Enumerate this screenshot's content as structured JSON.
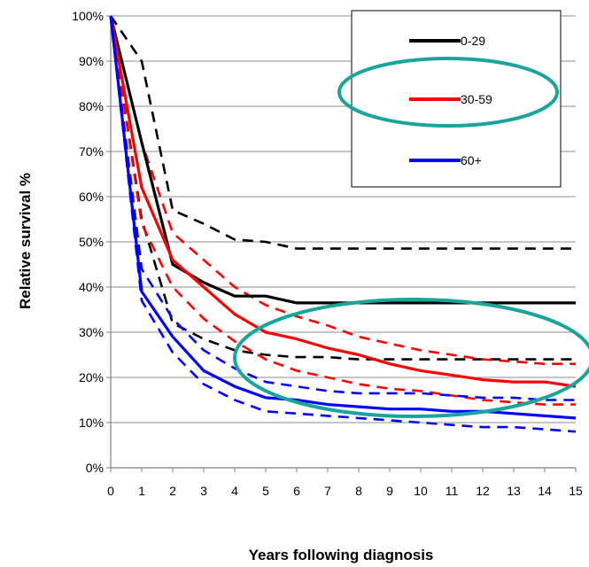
{
  "chart_data": {
    "type": "line",
    "xlabel": "Years following diagnosis",
    "ylabel": "Relative survival %",
    "xlim": [
      0,
      15
    ],
    "ylim": [
      0,
      100
    ],
    "x_ticks": [
      "0",
      "1",
      "2",
      "3",
      "4",
      "5",
      "6",
      "7",
      "8",
      "9",
      "10",
      "11",
      "12",
      "13",
      "14",
      "15"
    ],
    "y_ticks": [
      "0%",
      "10%",
      "20%",
      "30%",
      "40%",
      "50%",
      "60%",
      "70%",
      "80%",
      "90%",
      "100%"
    ],
    "grid": "horizontal",
    "legend_position": "top-right",
    "x": [
      0,
      1,
      2,
      3,
      4,
      5,
      6,
      7,
      8,
      9,
      10,
      11,
      12,
      13,
      14,
      15
    ],
    "series": [
      {
        "name": "0-29",
        "color": "#000000",
        "style": "solid",
        "values": [
          100,
          72,
          45,
          41,
          38,
          38,
          36.5,
          36.5,
          36.5,
          36.5,
          36.5,
          36.5,
          36.5,
          36.5,
          36.5,
          36.5
        ]
      },
      {
        "name": "",
        "color": "#000000",
        "style": "dashed",
        "legend": false,
        "values": [
          100,
          90,
          57,
          54,
          50.5,
          50,
          48.5,
          48.5,
          48.5,
          48.5,
          48.5,
          48.5,
          48.5,
          48.5,
          48.5,
          48.5
        ]
      },
      {
        "name": "",
        "color": "#000000",
        "style": "dashed",
        "legend": false,
        "values": [
          100,
          55,
          32,
          28.5,
          26,
          25,
          24.5,
          24.5,
          24,
          24,
          24,
          24,
          24,
          24,
          24,
          24
        ]
      },
      {
        "name": "30-59",
        "color": "#ff0000",
        "style": "solid",
        "values": [
          100,
          62,
          46,
          40,
          34,
          30,
          28.5,
          26.5,
          25,
          23,
          21.5,
          20.5,
          19.5,
          19,
          19,
          18
        ]
      },
      {
        "name": "",
        "color": "#ff0000",
        "style": "dashed",
        "legend": false,
        "values": [
          100,
          72,
          52,
          46,
          40,
          36,
          33.5,
          31.5,
          29,
          27.5,
          26,
          25,
          24,
          23.5,
          23,
          23
        ]
      },
      {
        "name": "",
        "color": "#ff0000",
        "style": "dashed",
        "legend": false,
        "values": [
          100,
          54,
          40,
          33,
          28,
          24,
          21.5,
          20,
          18.5,
          17.5,
          17,
          16,
          15,
          14.5,
          14,
          14
        ]
      },
      {
        "name": "60+",
        "color": "#0000ff",
        "style": "solid",
        "values": [
          100,
          39,
          29,
          21.5,
          18,
          15.5,
          15,
          14,
          13.5,
          13,
          13,
          12.5,
          12.5,
          12,
          11.5,
          11
        ]
      },
      {
        "name": "",
        "color": "#0000ff",
        "style": "dashed",
        "legend": false,
        "values": [
          100,
          44,
          33,
          26,
          22,
          19,
          18,
          17,
          16.5,
          16.5,
          16.5,
          16,
          15.5,
          15.5,
          15,
          15
        ]
      },
      {
        "name": "",
        "color": "#0000ff",
        "style": "dashed",
        "legend": false,
        "values": [
          100,
          37,
          25.5,
          18.5,
          15,
          12.5,
          12,
          11.5,
          11,
          10.5,
          10,
          9.5,
          9,
          9,
          8.5,
          8
        ]
      }
    ],
    "annotations": [
      {
        "type": "ellipse",
        "color": "#1aa59a",
        "target": "legend-entry-30-59"
      },
      {
        "type": "ellipse",
        "color": "#1aa59a",
        "target": "tail-region-years-5-15"
      }
    ]
  }
}
